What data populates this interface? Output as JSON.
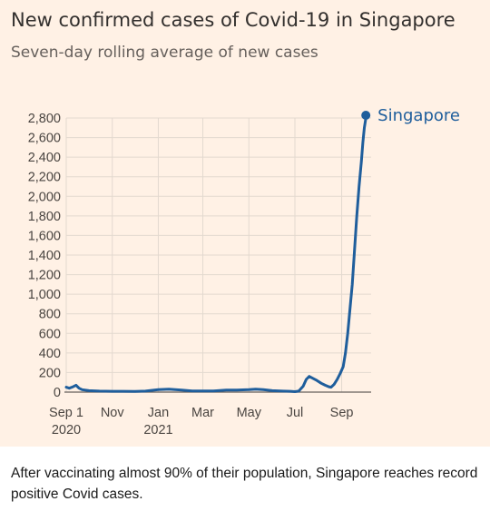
{
  "header": {
    "title": "New confirmed cases of Covid-19 in Singapore",
    "subtitle": "Seven-day rolling average of new cases"
  },
  "caption": "After vaccinating almost 90% of their population, Singapore reaches record positive Covid cases.",
  "colors": {
    "panel_background": "#fff1e5",
    "line": "#1f5e9c",
    "grid": "#e3d9cf",
    "tick_text": "#66605c"
  },
  "chart_data": {
    "type": "line",
    "title": "New confirmed cases of Covid-19 in Singapore",
    "subtitle": "Seven-day rolling average of new cases",
    "xlabel": "",
    "ylabel": "",
    "ylim": [
      0,
      2800
    ],
    "yticks": [
      0,
      200,
      400,
      600,
      800,
      1000,
      1200,
      1400,
      1600,
      1800,
      2000,
      2200,
      2400,
      2600,
      2800
    ],
    "ytick_labels": [
      "0",
      "200",
      "400",
      "600",
      "800",
      "1,000",
      "1,200",
      "1,400",
      "1,600",
      "1,800",
      "2,000",
      "2,200",
      "2,400",
      "2,600",
      "2,800"
    ],
    "xlim": [
      "2020-09-01",
      "2021-10-10"
    ],
    "xticks": [
      {
        "date": "2020-09-01",
        "line1": "Sep 1",
        "line2": "2020"
      },
      {
        "date": "2020-11-01",
        "line1": "Nov",
        "line2": ""
      },
      {
        "date": "2021-01-01",
        "line1": "Jan",
        "line2": "2021"
      },
      {
        "date": "2021-03-01",
        "line1": "Mar",
        "line2": ""
      },
      {
        "date": "2021-05-01",
        "line1": "May",
        "line2": ""
      },
      {
        "date": "2021-07-01",
        "line1": "Jul",
        "line2": ""
      },
      {
        "date": "2021-09-01",
        "line1": "Sep",
        "line2": ""
      }
    ],
    "grid": true,
    "legend_placement": "top-right (end of line)",
    "series": [
      {
        "name": "Singapore",
        "color": "#1f5e9c",
        "points": [
          [
            "2020-09-01",
            50
          ],
          [
            "2020-09-05",
            40
          ],
          [
            "2020-09-10",
            55
          ],
          [
            "2020-09-14",
            70
          ],
          [
            "2020-09-18",
            40
          ],
          [
            "2020-09-22",
            25
          ],
          [
            "2020-10-01",
            15
          ],
          [
            "2020-10-15",
            10
          ],
          [
            "2020-11-01",
            8
          ],
          [
            "2020-11-15",
            8
          ],
          [
            "2020-12-01",
            7
          ],
          [
            "2020-12-15",
            10
          ],
          [
            "2021-01-01",
            25
          ],
          [
            "2021-01-15",
            30
          ],
          [
            "2021-02-01",
            20
          ],
          [
            "2021-02-15",
            12
          ],
          [
            "2021-03-01",
            12
          ],
          [
            "2021-03-15",
            12
          ],
          [
            "2021-04-01",
            20
          ],
          [
            "2021-04-15",
            20
          ],
          [
            "2021-05-01",
            25
          ],
          [
            "2021-05-10",
            30
          ],
          [
            "2021-05-20",
            25
          ],
          [
            "2021-06-01",
            15
          ],
          [
            "2021-06-15",
            10
          ],
          [
            "2021-06-25",
            8
          ],
          [
            "2021-07-01",
            5
          ],
          [
            "2021-07-06",
            10
          ],
          [
            "2021-07-12",
            60
          ],
          [
            "2021-07-16",
            130
          ],
          [
            "2021-07-20",
            160
          ],
          [
            "2021-07-25",
            140
          ],
          [
            "2021-07-30",
            120
          ],
          [
            "2021-08-05",
            90
          ],
          [
            "2021-08-10",
            70
          ],
          [
            "2021-08-15",
            55
          ],
          [
            "2021-08-18",
            50
          ],
          [
            "2021-08-22",
            80
          ],
          [
            "2021-08-26",
            130
          ],
          [
            "2021-08-30",
            190
          ],
          [
            "2021-09-03",
            260
          ],
          [
            "2021-09-06",
            400
          ],
          [
            "2021-09-09",
            600
          ],
          [
            "2021-09-12",
            850
          ],
          [
            "2021-09-15",
            1100
          ],
          [
            "2021-09-18",
            1450
          ],
          [
            "2021-09-21",
            1800
          ],
          [
            "2021-09-24",
            2100
          ],
          [
            "2021-09-27",
            2350
          ],
          [
            "2021-09-29",
            2550
          ],
          [
            "2021-10-01",
            2700
          ],
          [
            "2021-10-03",
            2800
          ]
        ]
      }
    ]
  }
}
